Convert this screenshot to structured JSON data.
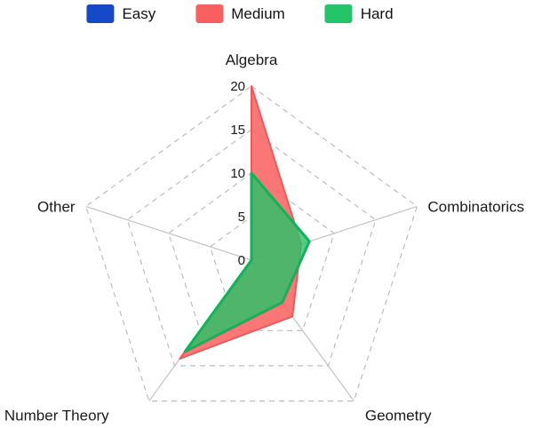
{
  "chart_data": {
    "type": "radar",
    "title": "",
    "categories": [
      "Algebra",
      "Combinatorics",
      "Geometry",
      "Number Theory",
      "Other"
    ],
    "series": [
      {
        "name": "Easy",
        "color": "#1649c8",
        "stroke": "#1649c8",
        "values": [
          0,
          0,
          0,
          0,
          0
        ]
      },
      {
        "name": "Medium",
        "color": "#fa5f5f",
        "stroke": "#f85454",
        "values": [
          20,
          6,
          8,
          14,
          0
        ]
      },
      {
        "name": "Hard",
        "color": "#24c468",
        "stroke": "#10b35c",
        "values": [
          10,
          7,
          6,
          13,
          0
        ]
      }
    ],
    "ticks": [
      0,
      5,
      10,
      15,
      20
    ],
    "rmax": 20,
    "grid": {
      "ring_style": "dashed",
      "ring_color": "#bdbdbd",
      "spoke_color": "#c2c2c2"
    },
    "legend_position": "top"
  }
}
